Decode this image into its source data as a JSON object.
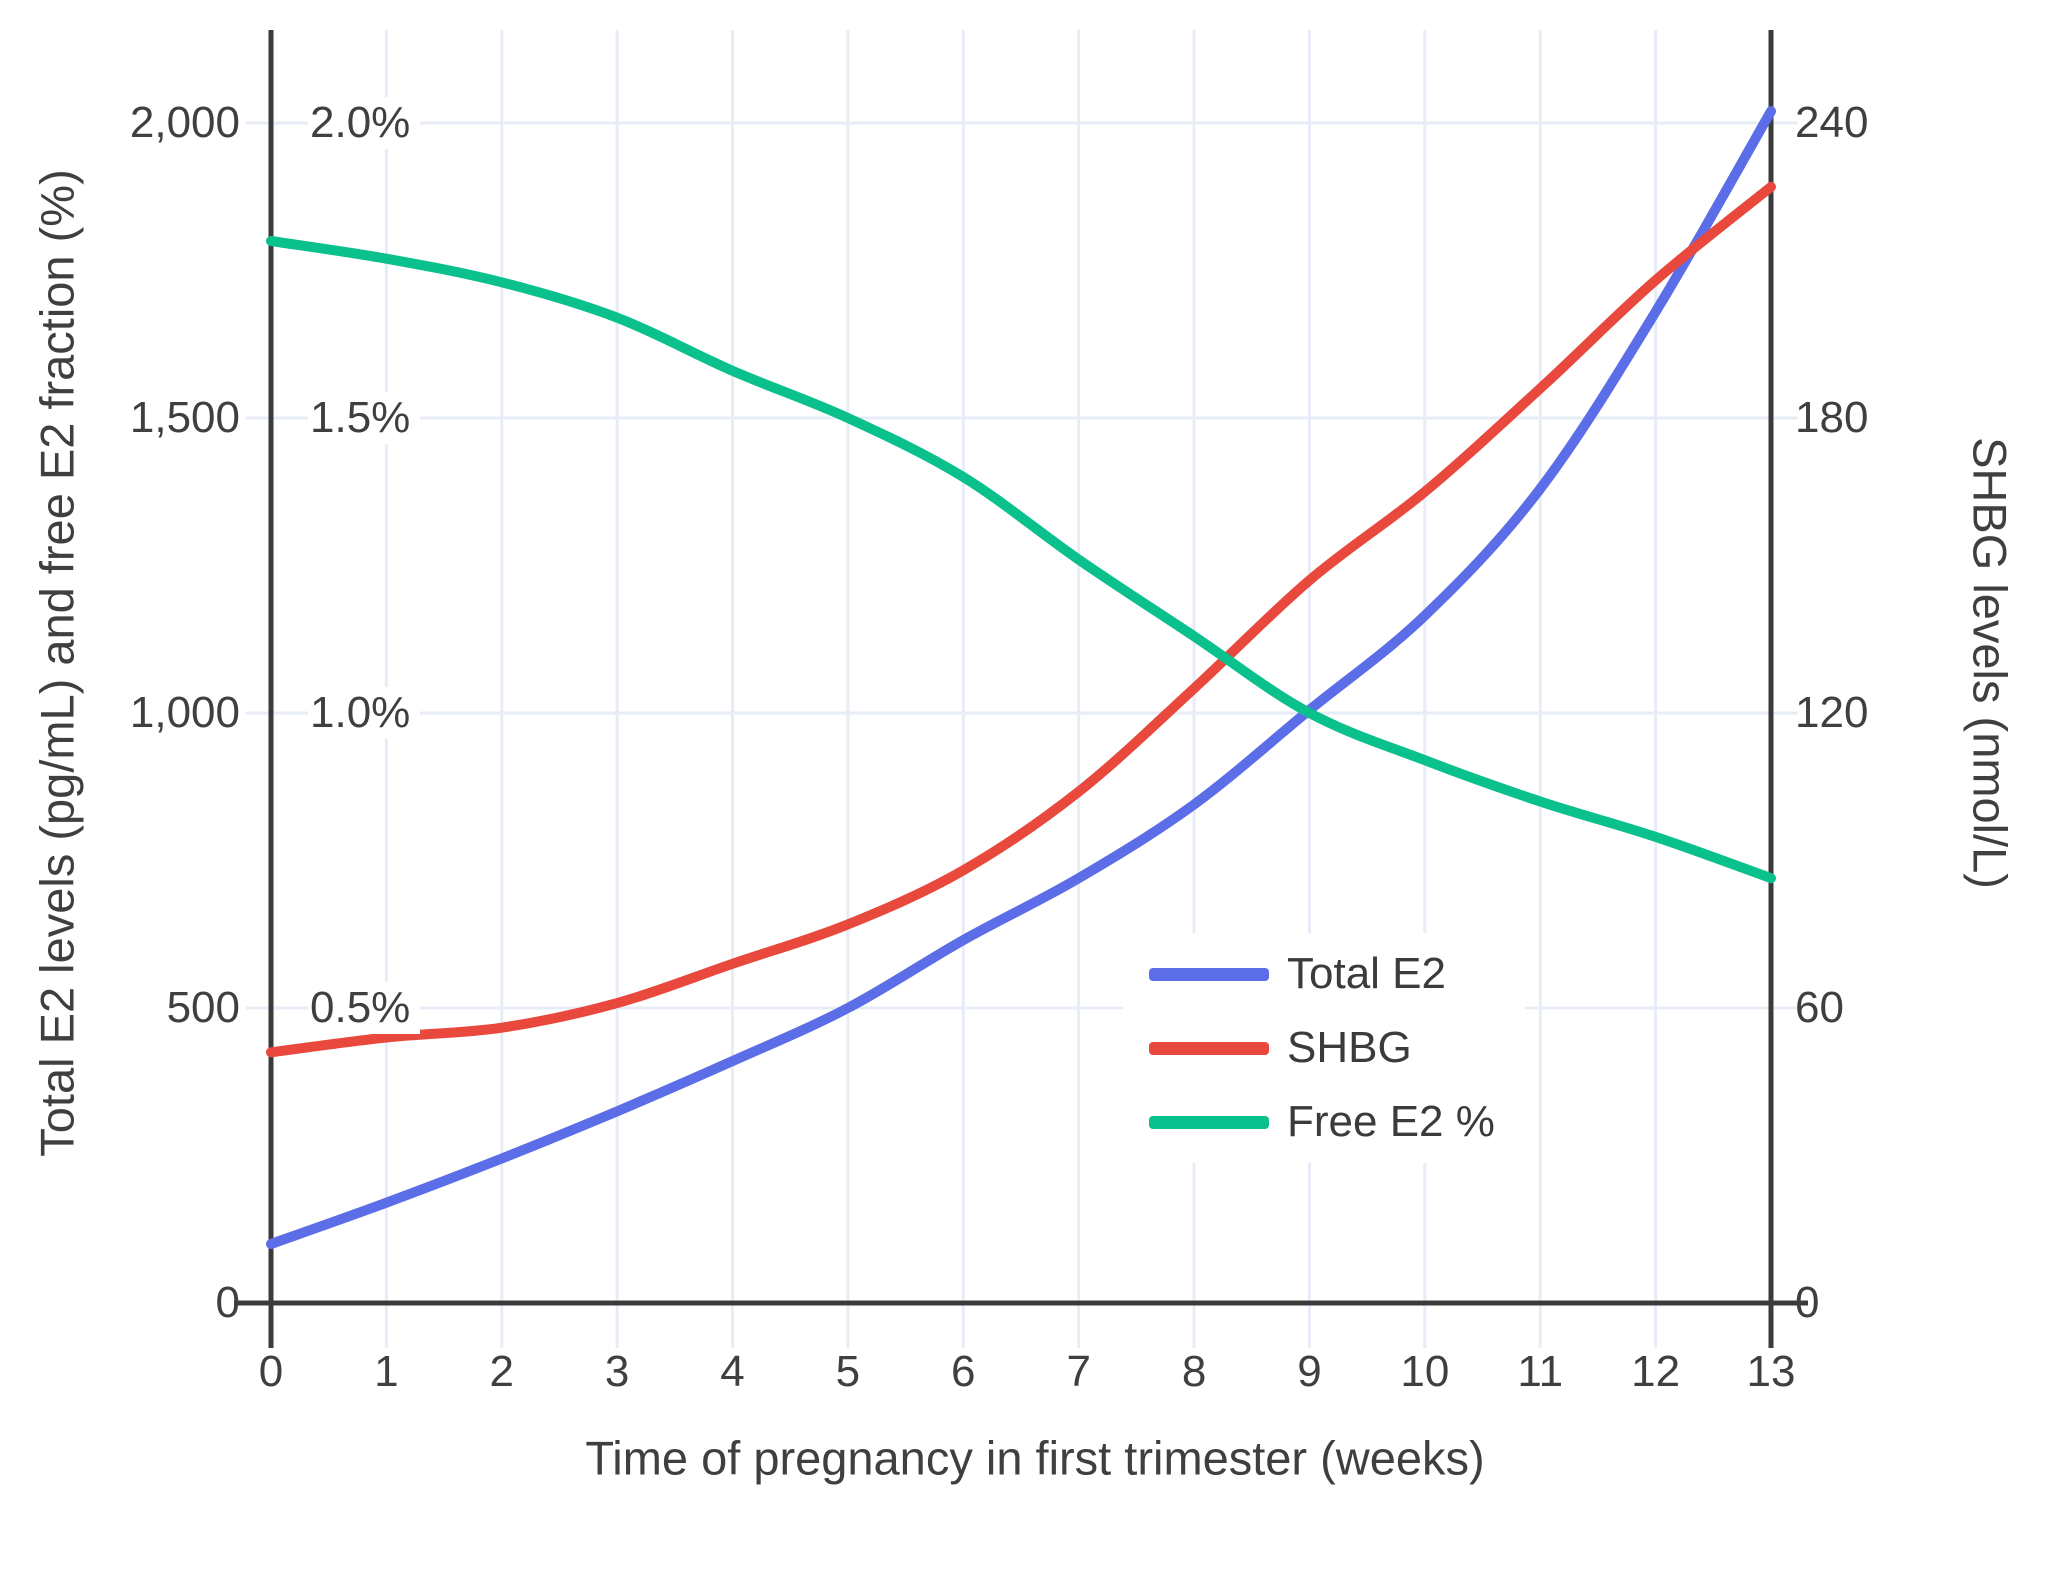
{
  "chart_data": {
    "type": "line",
    "title": "",
    "x_label": "Time of pregnancy in first trimester (weeks)",
    "x": [
      0,
      1,
      2,
      3,
      4,
      5,
      6,
      7,
      8,
      9,
      10,
      11,
      12,
      13
    ],
    "x_tick_labels": [
      "0",
      "1",
      "2",
      "3",
      "4",
      "5",
      "6",
      "7",
      "8",
      "9",
      "10",
      "11",
      "12",
      "13"
    ],
    "left_axis": {
      "title": "Total E2 levels (pg/mL) and free E2 fraction (%)",
      "tick_labels": [
        "0",
        "500",
        "1,000",
        "1,500",
        "2,000"
      ],
      "tick_values": [
        0,
        500,
        1000,
        1500,
        2000
      ],
      "range": [
        0,
        2135
      ]
    },
    "percent_axis": {
      "note": "inner labels sharing left axis, 2000 pg/mL = 2.0%",
      "tick_labels": [
        "0.5%",
        "1.0%",
        "1.5%",
        "2.0%"
      ],
      "tick_values": [
        0.5,
        1.0,
        1.5,
        2.0
      ]
    },
    "right_axis": {
      "title": "SHBG levels (nmol/L)",
      "tick_labels": [
        "0",
        "60",
        "120",
        "180",
        "240"
      ],
      "tick_values": [
        0,
        60,
        120,
        180,
        240
      ],
      "range": [
        0,
        256
      ]
    },
    "grid": true,
    "legend_position": "inside-center-right",
    "series": [
      {
        "name": "Total E2",
        "axis": "left",
        "unit": "pg/mL",
        "color": "#5b6ee8",
        "values": [
          100,
          170,
          245,
          325,
          410,
          500,
          615,
          720,
          845,
          1005,
          1165,
          1380,
          1680,
          2020
        ]
      },
      {
        "name": "SHBG",
        "axis": "right",
        "unit": "nmol/L",
        "color": "#e8493c",
        "values": [
          51,
          54,
          56,
          61,
          69,
          77,
          88,
          104,
          125,
          147,
          165,
          186,
          208,
          227
        ]
      },
      {
        "name": "Free E2 %",
        "axis": "percent",
        "unit": "%",
        "values": [
          1.8,
          1.77,
          1.73,
          1.67,
          1.58,
          1.5,
          1.4,
          1.26,
          1.13,
          1.0,
          0.92,
          0.85,
          0.79,
          0.72
        ],
        "color": "#0ac08c"
      }
    ]
  },
  "legend": {
    "entries": [
      {
        "label": "Total E2",
        "color": "#5b6ee8"
      },
      {
        "label": "SHBG",
        "color": "#e8493c"
      },
      {
        "label": "Free E2 %",
        "color": "#0ac08c"
      }
    ]
  },
  "colors": {
    "grid": "#e7ecf6",
    "axis_line": "#3b3b3b",
    "text": "#3f3f3f",
    "background": "#ffffff"
  }
}
